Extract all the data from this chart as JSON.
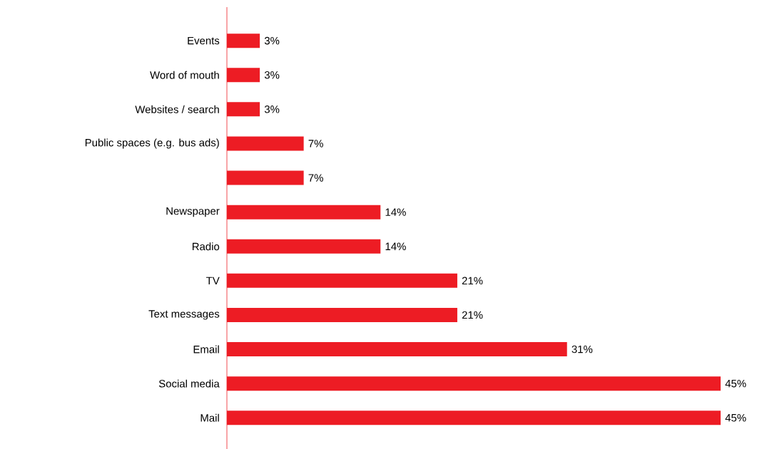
{
  "chart_data": {
    "type": "bar",
    "orientation": "horizontal",
    "categories": [
      "Events",
      "Word of mouth",
      "Websites / search",
      "Public spaces (e.g. bus ads)",
      null,
      "Newspaper",
      "Radio",
      "TV",
      "Text messages",
      "Email",
      "Social media",
      "Mail"
    ],
    "values": [
      3,
      3,
      3,
      7,
      7,
      14,
      14,
      21,
      21,
      31,
      45,
      45
    ],
    "value_labels": [
      "3%",
      "3%",
      "3%",
      "7%",
      "7%",
      "14%",
      "14%",
      "21%",
      "21%",
      "31%",
      "45%",
      "45%"
    ],
    "color": "#ed1c24"
  }
}
